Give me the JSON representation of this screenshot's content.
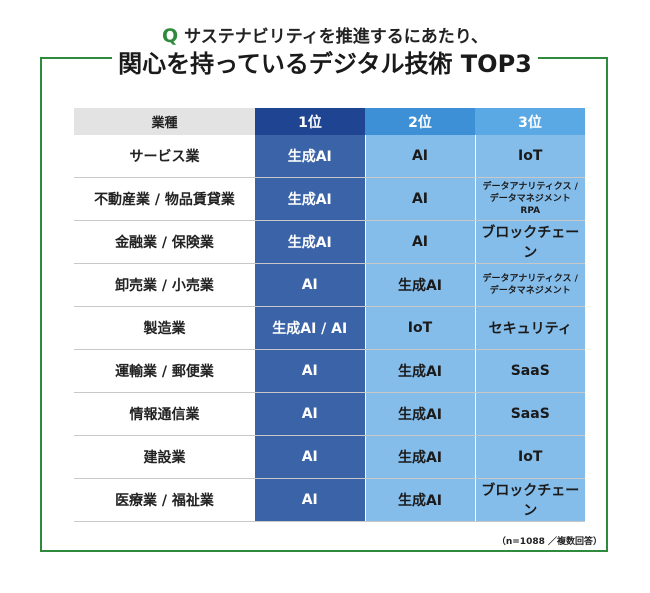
{
  "header": {
    "q_mark": "Q",
    "question": "サステナビリティを推進するにあたり、",
    "title": "関心を持っているデジタル技術 TOP3"
  },
  "chart_data": {
    "type": "table",
    "columns": [
      "業種",
      "1位",
      "2位",
      "3位"
    ],
    "rows": [
      {
        "industry": "サービス業",
        "r1": "生成AI",
        "r2": "AI",
        "r3": "IoT"
      },
      {
        "industry": "不動産業 / 物品賃貸業",
        "r1": "生成AI",
        "r2": "AI",
        "r3": "データアナリティクス / データマネジメント RPA"
      },
      {
        "industry": "金融業 / 保険業",
        "r1": "生成AI",
        "r2": "AI",
        "r3": "ブロックチェーン"
      },
      {
        "industry": "卸売業 / 小売業",
        "r1": "AI",
        "r2": "生成AI",
        "r3": "データアナリティクス / データマネジメント"
      },
      {
        "industry": "製造業",
        "r1": "生成AI / AI",
        "r2": "IoT",
        "r3": "セキュリティ"
      },
      {
        "industry": "運輸業 / 郵便業",
        "r1": "AI",
        "r2": "生成AI",
        "r3": "SaaS"
      },
      {
        "industry": "情報通信業",
        "r1": "AI",
        "r2": "生成AI",
        "r3": "SaaS"
      },
      {
        "industry": "建設業",
        "r1": "AI",
        "r2": "生成AI",
        "r3": "IoT"
      },
      {
        "industry": "医療業 / 福祉業",
        "r1": "AI",
        "r2": "生成AI",
        "r3": "ブロックチェーン"
      }
    ],
    "colors": {
      "rank1": "#3b64a8",
      "rank2": "#84bcea",
      "rank3": "#84bcea",
      "header1": "#1f4592",
      "header2": "#3d8fd6",
      "header3": "#5aa9e5",
      "frame": "#2f8a3c"
    }
  },
  "display": {
    "r3_lines": {
      "1": [
        "データアナリティクス /",
        "データマネジメント",
        "RPA"
      ],
      "3": [
        "データアナリティクス /",
        "データマネジメント"
      ]
    }
  },
  "footnote": "（n=1088 ／複数回答）"
}
